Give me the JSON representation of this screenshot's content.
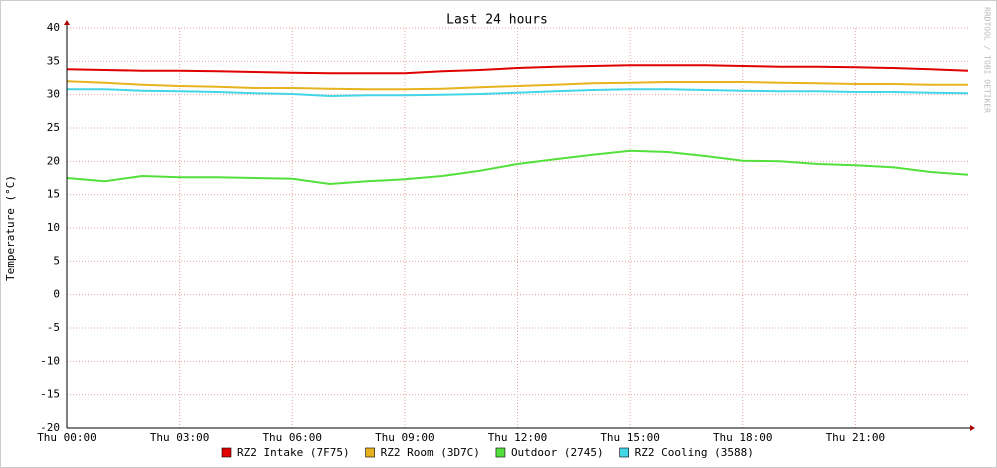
{
  "chart_data": {
    "type": "line",
    "title": "Last 24 hours",
    "y_label": "Temperature (°C)",
    "side_text": "RRDTOOL / TOBI OETIKER",
    "x": [
      0,
      1,
      2,
      3,
      4,
      5,
      6,
      7,
      8,
      9,
      10,
      11,
      12,
      13,
      14,
      15,
      16,
      17,
      18,
      19,
      20,
      21,
      22,
      23,
      24
    ],
    "xlim": [
      0,
      24
    ],
    "xticks": [
      {
        "value": 0,
        "label": "Thu 00:00"
      },
      {
        "value": 3,
        "label": "Thu 03:00"
      },
      {
        "value": 6,
        "label": "Thu 06:00"
      },
      {
        "value": 9,
        "label": "Thu 09:00"
      },
      {
        "value": 12,
        "label": "Thu 12:00"
      },
      {
        "value": 15,
        "label": "Thu 15:00"
      },
      {
        "value": 18,
        "label": "Thu 18:00"
      },
      {
        "value": 21,
        "label": "Thu 21:00"
      }
    ],
    "ylim": [
      -20,
      40
    ],
    "yticks": [
      -20,
      -15,
      -10,
      -5,
      0,
      5,
      10,
      15,
      20,
      25,
      30,
      35,
      40
    ],
    "grid": true,
    "series": [
      {
        "name": "RZ2 Intake (7F75)",
        "color": "#e00000",
        "values": [
          33.8,
          33.7,
          33.6,
          33.6,
          33.5,
          33.4,
          33.3,
          33.2,
          33.2,
          33.2,
          33.5,
          33.7,
          34.0,
          34.2,
          34.3,
          34.4,
          34.4,
          34.4,
          34.3,
          34.2,
          34.2,
          34.1,
          34.0,
          33.8,
          33.6
        ]
      },
      {
        "name": "RZ2 Room (3D7C)",
        "color": "#e6b31e",
        "values": [
          32.0,
          31.8,
          31.5,
          31.3,
          31.2,
          31.0,
          31.0,
          30.9,
          30.8,
          30.8,
          30.9,
          31.1,
          31.3,
          31.5,
          31.7,
          31.8,
          31.9,
          31.9,
          31.9,
          31.8,
          31.7,
          31.6,
          31.6,
          31.5,
          31.5
        ]
      },
      {
        "name": "Outdoor (2745)",
        "color": "#54e03c",
        "values": [
          17.5,
          17.0,
          17.8,
          17.6,
          17.6,
          17.5,
          17.4,
          16.6,
          17.0,
          17.3,
          17.8,
          18.6,
          19.6,
          20.3,
          21.0,
          21.6,
          21.4,
          20.8,
          20.1,
          20.0,
          19.6,
          19.4,
          19.1,
          18.4,
          18.0
        ]
      },
      {
        "name": "RZ2 Cooling (3588)",
        "color": "#42d6e6",
        "values": [
          30.8,
          30.8,
          30.6,
          30.5,
          30.4,
          30.2,
          30.1,
          29.8,
          29.9,
          29.9,
          30.0,
          30.1,
          30.3,
          30.5,
          30.7,
          30.8,
          30.8,
          30.7,
          30.6,
          30.5,
          30.5,
          30.4,
          30.4,
          30.3,
          30.2
        ]
      }
    ]
  }
}
